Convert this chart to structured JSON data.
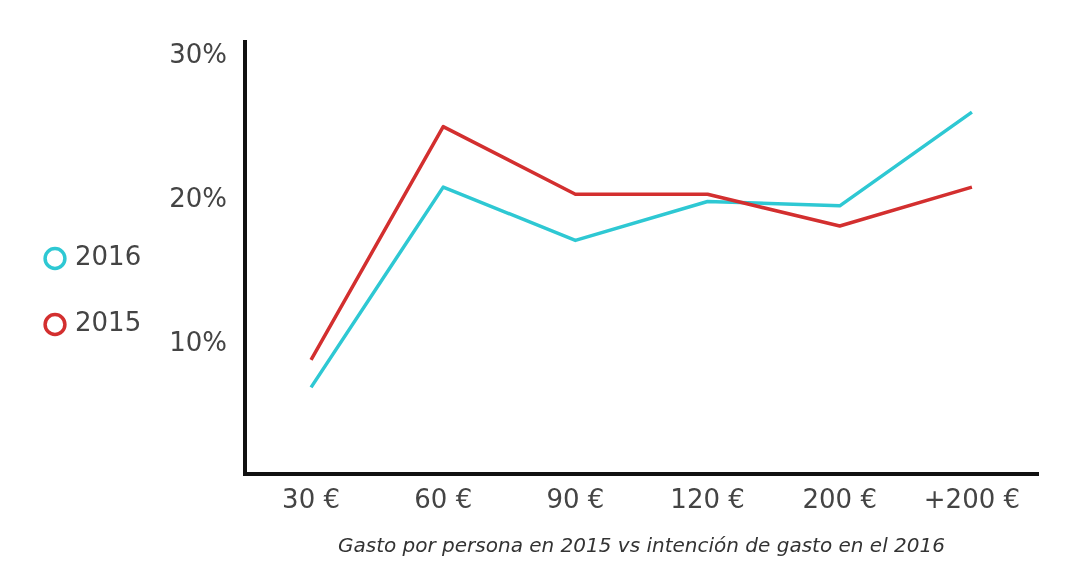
{
  "chart_data": {
    "type": "line",
    "xlabel": "Gasto por persona en 2015 vs intención de gasto en el 2016",
    "categories": [
      "30 €",
      "60 €",
      "90 €",
      "120 €",
      "200 €",
      "+200 €"
    ],
    "series": [
      {
        "name": "2016",
        "color": "#2ec8d3",
        "values": [
          7.0,
          20.9,
          17.2,
          19.9,
          19.6,
          26.1
        ]
      },
      {
        "name": "2015",
        "color": "#d32f2f",
        "values": [
          8.9,
          25.1,
          20.4,
          20.4,
          18.2,
          20.9
        ]
      }
    ],
    "ylim": [
      1,
      31
    ],
    "yticks": [
      {
        "value": 10,
        "label": "10%"
      },
      {
        "value": 20,
        "label": "20%"
      },
      {
        "value": 30,
        "label": "30%"
      }
    ],
    "grid": false,
    "legend": "left",
    "marker": "none",
    "line_style": "solid"
  }
}
